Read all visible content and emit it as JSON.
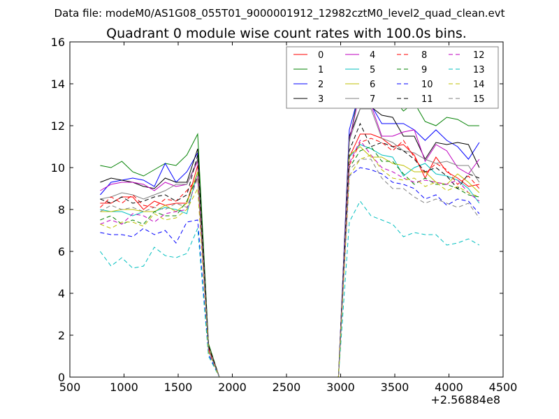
{
  "chart_data": {
    "type": "line",
    "supertitle": "Data file: modeM0/AS1G08_055T01_9000001912_12982cztM0_level2_quad_clean.evt",
    "title": "Quadrant 0 module wise count rates with 100.0s bins.",
    "xlabel": "",
    "ylabel": "",
    "x_offset_label": "+2.56884e8",
    "xlim": [
      500,
      4500
    ],
    "ylim": [
      0,
      16
    ],
    "x_ticks": [
      500,
      1000,
      1500,
      2000,
      2500,
      3000,
      3500,
      4000,
      4500
    ],
    "y_ticks": [
      0,
      2,
      4,
      6,
      8,
      10,
      12,
      14,
      16
    ],
    "x_tick_labels": [
      "500",
      "1000",
      "1500",
      "2000",
      "2500",
      "3000",
      "3500",
      "4000",
      "4500"
    ],
    "y_tick_labels": [
      "0",
      "2",
      "4",
      "6",
      "8",
      "10",
      "12",
      "14",
      "16"
    ],
    "grid": false,
    "legend_position": "top-right",
    "x": [
      780,
      880,
      980,
      1080,
      1180,
      1280,
      1380,
      1480,
      1580,
      1680,
      1780,
      1880,
      1980,
      2080,
      2180,
      2280,
      2380,
      2480,
      2580,
      2680,
      2780,
      2880,
      2980,
      3080,
      3180,
      3280,
      3380,
      3480,
      3580,
      3680,
      3780,
      3880,
      3980,
      4080,
      4180,
      4280
    ],
    "series": [
      {
        "name": "0",
        "color": "#ff0000",
        "dash": false,
        "values": [
          8.3,
          8.3,
          8.6,
          8.6,
          8.0,
          8.4,
          8.2,
          8.3,
          8.3,
          10.1,
          1.5,
          0,
          0,
          0,
          0,
          0,
          0,
          0,
          0,
          0,
          0,
          0,
          0,
          10.5,
          11.6,
          11.6,
          11.4,
          11.0,
          11.1,
          10.6,
          9.5,
          10.5,
          9.8,
          9.5,
          9.1,
          9.2
        ]
      },
      {
        "name": "1",
        "color": "#008000",
        "dash": false,
        "values": [
          10.1,
          10.0,
          10.3,
          9.8,
          9.6,
          9.9,
          10.2,
          10.1,
          10.6,
          11.6,
          1.6,
          0,
          0,
          0,
          0,
          0,
          0,
          0,
          0,
          0,
          0,
          0,
          0,
          11.2,
          14.0,
          13.8,
          14.4,
          13.3,
          12.7,
          13.1,
          12.2,
          12.0,
          12.4,
          12.3,
          12.0,
          12.0
        ]
      },
      {
        "name": "2",
        "color": "#0000ff",
        "dash": false,
        "values": [
          8.7,
          9.3,
          9.4,
          9.5,
          9.4,
          9.1,
          10.2,
          9.3,
          9.8,
          10.7,
          1.4,
          0,
          0,
          0,
          0,
          0,
          0,
          0,
          0,
          0,
          0,
          0,
          0,
          11.8,
          13.7,
          13.0,
          12.1,
          12.1,
          12.1,
          11.8,
          11.3,
          11.8,
          11.3,
          11.0,
          10.4,
          11.2
        ]
      },
      {
        "name": "3",
        "color": "#000000",
        "dash": false,
        "values": [
          9.3,
          9.5,
          9.4,
          9.3,
          9.1,
          9.0,
          9.5,
          9.3,
          9.3,
          10.9,
          1.5,
          0,
          0,
          0,
          0,
          0,
          0,
          0,
          0,
          0,
          0,
          0,
          0,
          11.5,
          12.8,
          12.9,
          12.5,
          12.4,
          11.5,
          11.5,
          10.4,
          11.2,
          11.1,
          11.2,
          11.1,
          10.0
        ]
      },
      {
        "name": "4",
        "color": "#bf00bf",
        "dash": false,
        "values": [
          8.9,
          9.2,
          9.3,
          9.3,
          9.2,
          8.9,
          9.3,
          9.1,
          9.2,
          10.3,
          1.4,
          0,
          0,
          0,
          0,
          0,
          0,
          0,
          0,
          0,
          0,
          0,
          0,
          11.3,
          13.6,
          13.0,
          11.5,
          11.5,
          11.7,
          11.8,
          10.3,
          11.1,
          10.8,
          10.0,
          9.7,
          10.4
        ]
      },
      {
        "name": "5",
        "color": "#00bfbf",
        "dash": false,
        "values": [
          8.0,
          7.9,
          7.9,
          7.7,
          7.9,
          7.9,
          8.1,
          8.0,
          7.8,
          9.8,
          1.3,
          0,
          0,
          0,
          0,
          0,
          0,
          0,
          0,
          0,
          0,
          0,
          0,
          10.5,
          11.1,
          10.9,
          10.6,
          10.5,
          9.6,
          10.0,
          10.2,
          9.7,
          9.6,
          9.4,
          9.0,
          8.3
        ]
      },
      {
        "name": "6",
        "color": "#bfbf00",
        "dash": false,
        "values": [
          7.9,
          7.9,
          8.0,
          8.0,
          7.9,
          7.9,
          8.2,
          7.9,
          8.3,
          9.8,
          1.4,
          0,
          0,
          0,
          0,
          0,
          0,
          0,
          0,
          0,
          0,
          0,
          0,
          10.6,
          11.0,
          10.5,
          10.5,
          10.2,
          10.1,
          9.8,
          9.8,
          9.3,
          9.2,
          9.7,
          9.3,
          8.8
        ]
      },
      {
        "name": "7",
        "color": "#808080",
        "dash": false,
        "values": [
          8.5,
          8.6,
          8.8,
          8.7,
          8.5,
          8.7,
          8.9,
          9.2,
          9.2,
          10.4,
          1.5,
          0,
          0,
          0,
          0,
          0,
          0,
          0,
          0,
          0,
          0,
          0,
          0,
          11.3,
          12.8,
          12.8,
          11.4,
          11.2,
          10.8,
          10.7,
          10.4,
          10.2,
          10.3,
          10.1,
          10.1,
          9.3
        ]
      },
      {
        "name": "8",
        "color": "#ff0000",
        "dash": true,
        "values": [
          8.1,
          8.6,
          8.3,
          8.7,
          8.2,
          8.1,
          8.5,
          8.4,
          8.9,
          9.5,
          1.4,
          0,
          0,
          0,
          0,
          0,
          0,
          0,
          0,
          0,
          0,
          0,
          0,
          10.1,
          11.2,
          11.4,
          11.2,
          10.8,
          11.3,
          10.5,
          9.7,
          10.2,
          9.9,
          9.2,
          9.6,
          9.0
        ]
      },
      {
        "name": "9",
        "color": "#008000",
        "dash": true,
        "values": [
          7.5,
          7.7,
          7.3,
          7.5,
          7.3,
          7.9,
          7.7,
          7.7,
          8.4,
          9.6,
          1.3,
          0,
          0,
          0,
          0,
          0,
          0,
          0,
          0,
          0,
          0,
          0,
          0,
          10.0,
          10.8,
          11.0,
          10.3,
          10.3,
          9.7,
          9.2,
          9.5,
          9.2,
          9.2,
          9.0,
          8.7,
          8.6
        ]
      },
      {
        "name": "10",
        "color": "#0000ff",
        "dash": true,
        "values": [
          6.9,
          6.8,
          6.8,
          6.7,
          7.1,
          6.8,
          7.0,
          6.4,
          7.4,
          7.5,
          1.1,
          0,
          0,
          0,
          0,
          0,
          0,
          0,
          0,
          0,
          0,
          0,
          0,
          9.6,
          10.0,
          9.9,
          9.7,
          9.3,
          9.2,
          9.0,
          8.5,
          8.7,
          8.2,
          8.5,
          8.4,
          7.8
        ]
      },
      {
        "name": "11",
        "color": "#000000",
        "dash": true,
        "values": [
          8.5,
          8.3,
          8.6,
          8.3,
          8.4,
          8.6,
          8.7,
          8.4,
          8.7,
          10.6,
          1.5,
          0,
          0,
          0,
          0,
          0,
          0,
          0,
          0,
          0,
          0,
          0,
          0,
          10.8,
          12.1,
          11.0,
          11.2,
          11.0,
          10.8,
          10.4,
          9.8,
          10.0,
          9.6,
          9.0,
          9.7,
          9.5
        ]
      },
      {
        "name": "12",
        "color": "#bf00bf",
        "dash": true,
        "values": [
          7.3,
          7.5,
          7.3,
          7.8,
          7.7,
          7.4,
          7.8,
          7.9,
          8.0,
          9.6,
          1.3,
          0,
          0,
          0,
          0,
          0,
          0,
          0,
          0,
          0,
          0,
          0,
          0,
          10.2,
          11.3,
          10.6,
          10.0,
          9.8,
          9.5,
          9.3,
          9.4,
          9.3,
          9.2,
          9.4,
          8.8,
          8.4
        ]
      },
      {
        "name": "13",
        "color": "#00bfbf",
        "dash": true,
        "values": [
          6.0,
          5.3,
          5.7,
          5.2,
          5.3,
          6.2,
          5.8,
          5.7,
          5.9,
          7.1,
          1.0,
          0,
          0,
          0,
          0,
          0,
          0,
          0,
          0,
          0,
          0,
          0,
          0,
          7.4,
          8.4,
          7.7,
          7.5,
          7.3,
          6.7,
          6.9,
          6.8,
          6.8,
          6.3,
          6.4,
          6.6,
          6.3
        ]
      },
      {
        "name": "14",
        "color": "#bfbf00",
        "dash": true,
        "values": [
          7.3,
          7.1,
          7.4,
          7.4,
          7.2,
          7.8,
          7.5,
          7.6,
          8.0,
          9.0,
          1.2,
          0,
          0,
          0,
          0,
          0,
          0,
          0,
          0,
          0,
          0,
          0,
          0,
          9.6,
          10.4,
          10.6,
          9.9,
          9.5,
          9.4,
          9.5,
          9.1,
          9.3,
          8.9,
          9.1,
          8.8,
          8.6
        ]
      },
      {
        "name": "15",
        "color": "#808080",
        "dash": true,
        "values": [
          7.9,
          8.2,
          8.0,
          8.1,
          7.9,
          8.1,
          8.0,
          8.3,
          8.1,
          9.5,
          1.3,
          0,
          0,
          0,
          0,
          0,
          0,
          0,
          0,
          0,
          0,
          0,
          0,
          9.9,
          10.4,
          10.4,
          9.5,
          9.0,
          9.0,
          8.6,
          8.3,
          8.5,
          8.3,
          8.1,
          8.3,
          7.6
        ]
      }
    ]
  }
}
